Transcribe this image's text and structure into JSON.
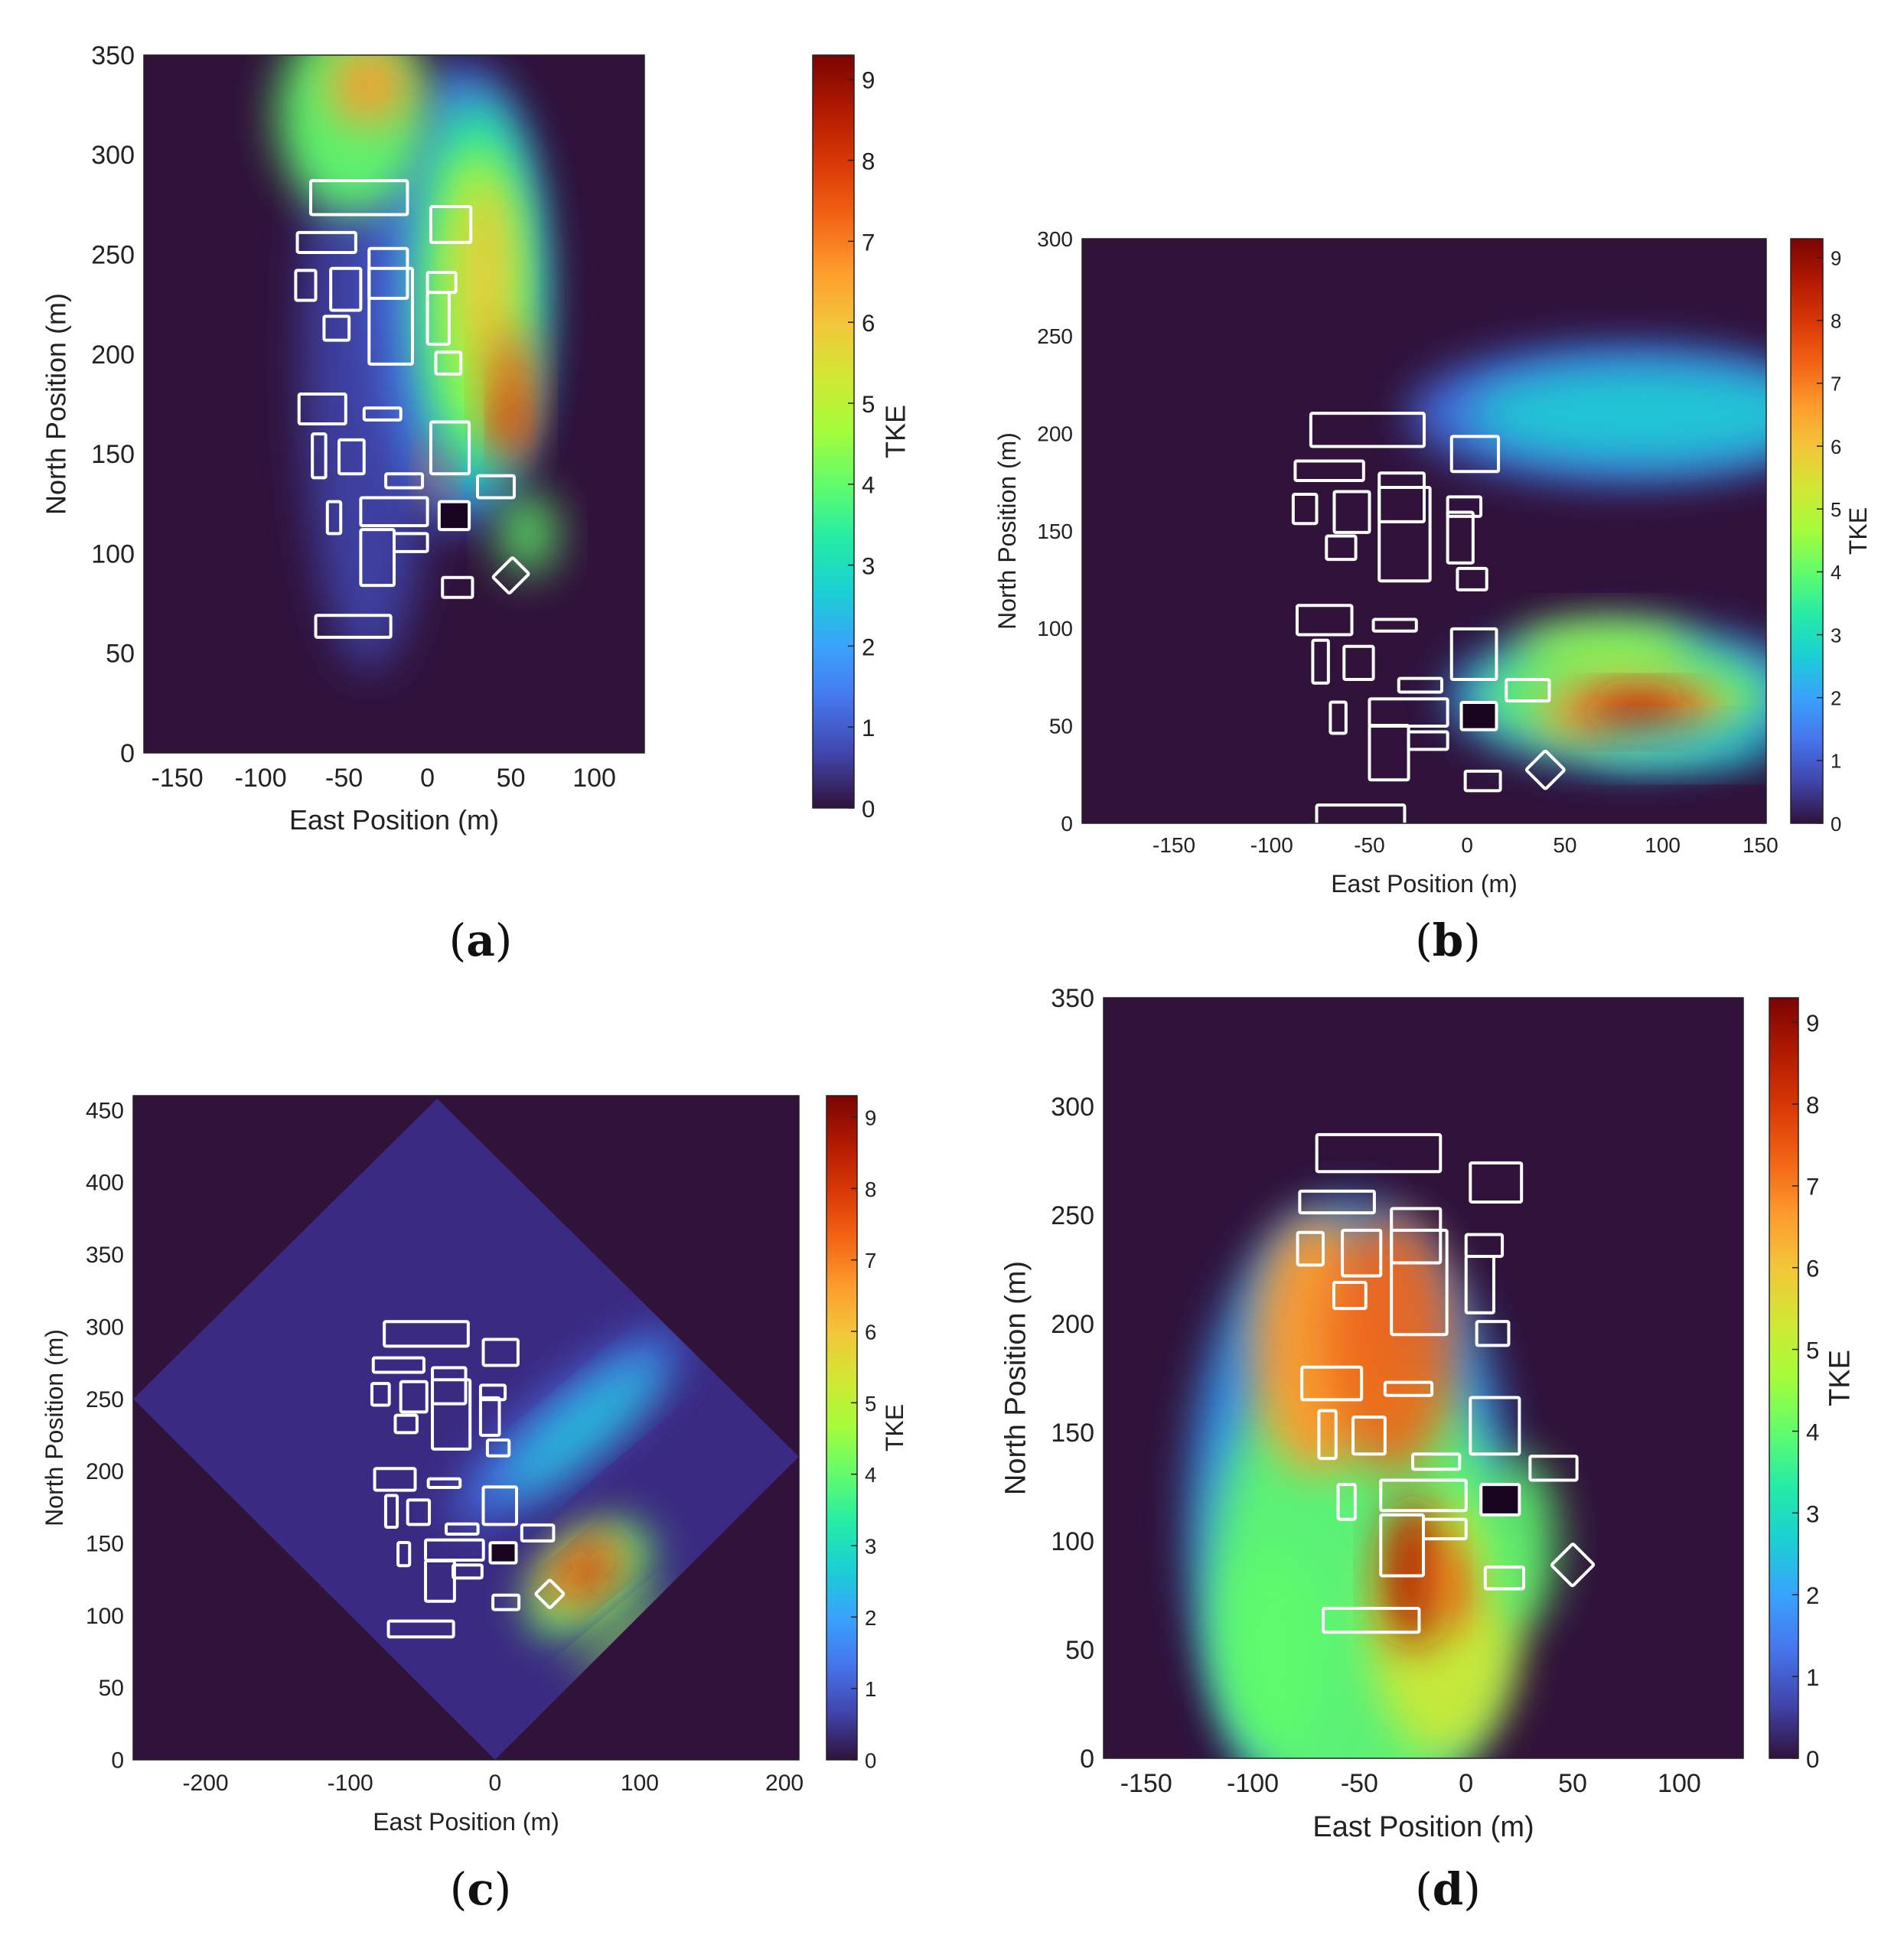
{
  "figure": {
    "colormap": [
      "#30123b",
      "#4145ab",
      "#4675ed",
      "#39a2fc",
      "#1bcfd4",
      "#24eca6",
      "#61fc6c",
      "#a4fc3b",
      "#d1e834",
      "#f3c63a",
      "#fe9b2d",
      "#f36315",
      "#d93806",
      "#b11901",
      "#7a0403"
    ],
    "building_outline_color": "#ffffff",
    "panels": [
      {
        "id": "a",
        "label": "a",
        "xlabel": "East Position (m)",
        "ylabel": "North Position (m)",
        "colorbar_label": "TKE",
        "xlim": [
          -170,
          130
        ],
        "ylim": [
          0,
          350
        ],
        "xticks": [
          -150,
          -100,
          -50,
          0,
          50,
          100
        ],
        "yticks": [
          0,
          50,
          100,
          150,
          200,
          250,
          300,
          350
        ],
        "cticks": [
          0,
          1,
          2,
          3,
          4,
          5,
          6,
          7,
          8,
          9
        ],
        "clim": [
          0,
          9.3
        ],
        "wind_from": "south",
        "rotation_deg": 0
      },
      {
        "id": "b",
        "label": "b",
        "xlabel": "East Position (m)",
        "ylabel": "North Position (m)",
        "colorbar_label": "TKE",
        "xlim": [
          -197,
          153
        ],
        "ylim": [
          0,
          300
        ],
        "xticks": [
          -150,
          -100,
          -50,
          0,
          50,
          100,
          150
        ],
        "yticks": [
          0,
          50,
          100,
          150,
          200,
          250,
          300
        ],
        "cticks": [
          0,
          1,
          2,
          3,
          4,
          5,
          6,
          7,
          8,
          9
        ],
        "clim": [
          0,
          9.3
        ],
        "wind_from": "west",
        "rotation_deg": 0
      },
      {
        "id": "c",
        "label": "c",
        "xlabel": "East Position (m)",
        "ylabel": "North Position (m)",
        "colorbar_label": "TKE",
        "xlim": [
          -250,
          210
        ],
        "ylim": [
          0,
          460
        ],
        "xticks": [
          -200,
          -100,
          0,
          100,
          200
        ],
        "yticks": [
          0,
          50,
          100,
          150,
          200,
          250,
          300,
          350,
          400,
          450
        ],
        "cticks": [
          0,
          1,
          2,
          3,
          4,
          5,
          6,
          7,
          8,
          9
        ],
        "clim": [
          0,
          9.3
        ],
        "wind_from": "northwest",
        "rotation_deg": 45
      },
      {
        "id": "d",
        "label": "d",
        "xlabel": "East Position (m)",
        "ylabel": "North Position (m)",
        "colorbar_label": "TKE",
        "xlim": [
          -170,
          130
        ],
        "ylim": [
          0,
          350
        ],
        "xticks": [
          -150,
          -100,
          -50,
          0,
          50,
          100
        ],
        "yticks": [
          0,
          50,
          100,
          150,
          200,
          250,
          300,
          350
        ],
        "cticks": [
          0,
          1,
          2,
          3,
          4,
          5,
          6,
          7,
          8,
          9
        ],
        "clim": [
          0,
          9.3
        ],
        "wind_from": "north",
        "rotation_deg": 0
      }
    ]
  },
  "chart_data": [
    {
      "type": "heatmap",
      "panel": "a",
      "title": "",
      "xlabel": "East Position (m)",
      "ylabel": "North Position (m)",
      "colorbar_label": "TKE",
      "buildings": [
        {
          "x": -70,
          "y": 270,
          "w": 58,
          "h": 17
        },
        {
          "x": -78,
          "y": 251,
          "w": 35,
          "h": 10
        },
        {
          "x": -35,
          "y": 228,
          "w": 23,
          "h": 25
        },
        {
          "x": 2,
          "y": 256,
          "w": 24,
          "h": 18
        },
        {
          "x": -79,
          "y": 227,
          "w": 12,
          "h": 15
        },
        {
          "x": -58,
          "y": 222,
          "w": 18,
          "h": 21
        },
        {
          "x": -62,
          "y": 207,
          "w": 15,
          "h": 12
        },
        {
          "x": -35,
          "y": 195,
          "w": 26,
          "h": 48
        },
        {
          "x": 0,
          "y": 231,
          "w": 17,
          "h": 10
        },
        {
          "x": 0,
          "y": 205,
          "w": 13,
          "h": 26
        },
        {
          "x": 5,
          "y": 190,
          "w": 15,
          "h": 11
        },
        {
          "x": -77,
          "y": 165,
          "w": 28,
          "h": 15
        },
        {
          "x": -38,
          "y": 167,
          "w": 22,
          "h": 6
        },
        {
          "x": 2,
          "y": 140,
          "w": 23,
          "h": 26
        },
        {
          "x": -69,
          "y": 138,
          "w": 8,
          "h": 22
        },
        {
          "x": -53,
          "y": 140,
          "w": 15,
          "h": 17
        },
        {
          "x": -25,
          "y": 133,
          "w": 22,
          "h": 7
        },
        {
          "x": -40,
          "y": 114,
          "w": 40,
          "h": 14
        },
        {
          "x": -60,
          "y": 110,
          "w": 8,
          "h": 16
        },
        {
          "x": 7,
          "y": 112,
          "w": 18,
          "h": 14
        },
        {
          "x": 30,
          "y": 128,
          "w": 22,
          "h": 11
        },
        {
          "x": -40,
          "y": 84,
          "w": 20,
          "h": 28
        },
        {
          "x": -20,
          "y": 101,
          "w": 20,
          "h": 9
        },
        {
          "x": 9,
          "y": 78,
          "w": 18,
          "h": 10
        },
        {
          "x": 43,
          "y": 82,
          "w": 14,
          "h": 14,
          "rotate": 45
        },
        {
          "x": -67,
          "y": 58,
          "w": 45,
          "h": 11
        }
      ],
      "plume_peaks": [
        {
          "x": 50,
          "y": 175,
          "tke": 8.0
        },
        {
          "x": 30,
          "y": 240,
          "tke": 6.5
        },
        {
          "x": -40,
          "y": 345,
          "tke": 7.0
        }
      ]
    },
    {
      "type": "heatmap",
      "panel": "b",
      "title": "",
      "xlabel": "East Position (m)",
      "ylabel": "North Position (m)",
      "colorbar_label": "TKE",
      "plume_peaks": [
        {
          "x": 85,
          "y": 57,
          "tke": 9.0
        },
        {
          "x": 120,
          "y": 215,
          "tke": 3.5
        }
      ]
    },
    {
      "type": "heatmap",
      "panel": "c",
      "title": "",
      "xlabel": "East Position (m)",
      "ylabel": "North Position (m)",
      "colorbar_label": "TKE",
      "plume_peaks": [
        {
          "x": 65,
          "y": 130,
          "tke": 8.5
        },
        {
          "x": 80,
          "y": 240,
          "tke": 3.5
        }
      ]
    },
    {
      "type": "heatmap",
      "panel": "d",
      "title": "",
      "xlabel": "East Position (m)",
      "ylabel": "North Position (m)",
      "colorbar_label": "TKE",
      "plume_peaks": [
        {
          "x": -25,
          "y": 80,
          "tke": 9.3
        },
        {
          "x": -70,
          "y": 200,
          "tke": 7.5
        },
        {
          "x": -30,
          "y": 220,
          "tke": 7.0
        }
      ]
    }
  ]
}
